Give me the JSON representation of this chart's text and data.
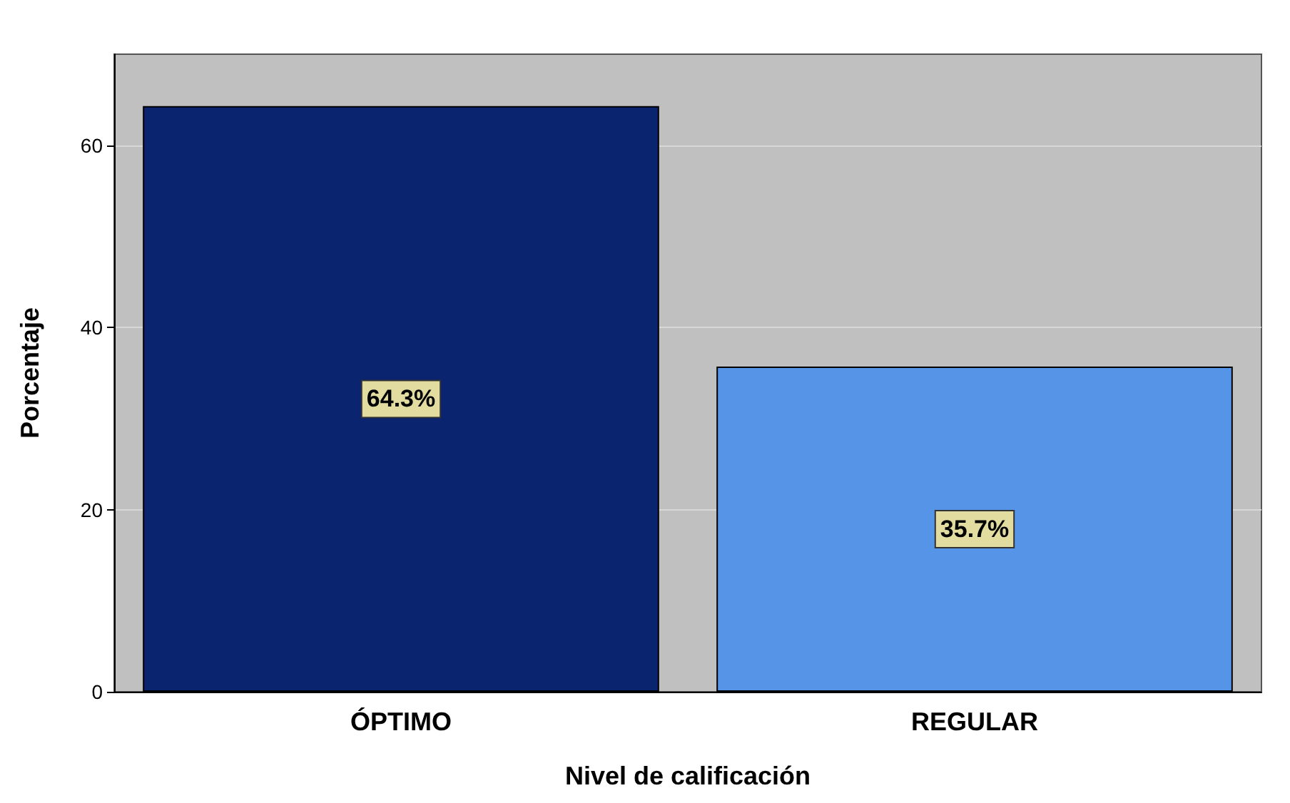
{
  "chart_data": {
    "type": "bar",
    "xlabel": "Nivel de calificación",
    "ylabel": "Porcentaje",
    "categories": [
      "ÓPTIMO",
      "REGULAR"
    ],
    "values": [
      64.3,
      35.7
    ],
    "colors": [
      "#0a2470",
      "#5594e6"
    ],
    "value_labels": [
      "64.3%",
      "35.7%"
    ],
    "ylim": [
      0,
      70
    ],
    "yticks": [
      0,
      20,
      40,
      60
    ],
    "grid": "y"
  }
}
